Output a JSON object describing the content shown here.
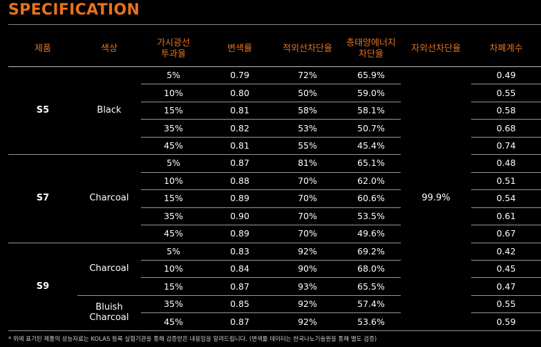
{
  "title": "SPECIFICATION",
  "headers": [
    "제품",
    "색상",
    "가시광선\n투과율",
    "변색률",
    "적외선차단율",
    "총태양에너지\n차단율",
    "자외선차단율",
    "차폐계수"
  ],
  "uv_value": "99.9%",
  "groups": [
    {
      "product": "S5",
      "colors": [
        {
          "label": "Black",
          "span": 5
        }
      ],
      "rows": [
        {
          "vlt": "5%",
          "disc": "0.79",
          "ir": "72%",
          "tser": "65.9%",
          "sc": "0.49"
        },
        {
          "vlt": "10%",
          "disc": "0.80",
          "ir": "50%",
          "tser": "59.0%",
          "sc": "0.55"
        },
        {
          "vlt": "15%",
          "disc": "0.81",
          "ir": "58%",
          "tser": "58.1%",
          "sc": "0.58"
        },
        {
          "vlt": "35%",
          "disc": "0.82",
          "ir": "53%",
          "tser": "50.7%",
          "sc": "0.68"
        },
        {
          "vlt": "45%",
          "disc": "0.81",
          "ir": "55%",
          "tser": "45.4%",
          "sc": "0.74"
        }
      ]
    },
    {
      "product": "S7",
      "colors": [
        {
          "label": "Charcoal",
          "span": 5
        }
      ],
      "rows": [
        {
          "vlt": "5%",
          "disc": "0.87",
          "ir": "81%",
          "tser": "65.1%",
          "sc": "0.48"
        },
        {
          "vlt": "10%",
          "disc": "0.88",
          "ir": "70%",
          "tser": "62.0%",
          "sc": "0.51"
        },
        {
          "vlt": "15%",
          "disc": "0.89",
          "ir": "70%",
          "tser": "60.6%",
          "sc": "0.54"
        },
        {
          "vlt": "35%",
          "disc": "0.90",
          "ir": "70%",
          "tser": "53.5%",
          "sc": "0.61"
        },
        {
          "vlt": "45%",
          "disc": "0.89",
          "ir": "70%",
          "tser": "49.6%",
          "sc": "0.67"
        }
      ]
    },
    {
      "product": "S9",
      "colors": [
        {
          "label": "Charcoal",
          "span": 3
        },
        {
          "label": "Bluish\nCharcoal",
          "span": 2
        }
      ],
      "rows": [
        {
          "vlt": "5%",
          "disc": "0.83",
          "ir": "92%",
          "tser": "69.2%",
          "sc": "0.42"
        },
        {
          "vlt": "10%",
          "disc": "0.84",
          "ir": "90%",
          "tser": "68.0%",
          "sc": "0.45"
        },
        {
          "vlt": "15%",
          "disc": "0.87",
          "ir": "93%",
          "tser": "65.5%",
          "sc": "0.47"
        },
        {
          "vlt": "35%",
          "disc": "0.85",
          "ir": "92%",
          "tser": "57.4%",
          "sc": "0.55"
        },
        {
          "vlt": "45%",
          "disc": "0.87",
          "ir": "92%",
          "tser": "53.6%",
          "sc": "0.59"
        }
      ]
    }
  ],
  "footnote": "* 위에 표기된 제품의 성능자료는 KOLAS 등록 실험기관을 통해 검증받은 내용임을 알려드립니다. (변색률 데이터는 한국나노기술원을 통해 별도 검증)"
}
